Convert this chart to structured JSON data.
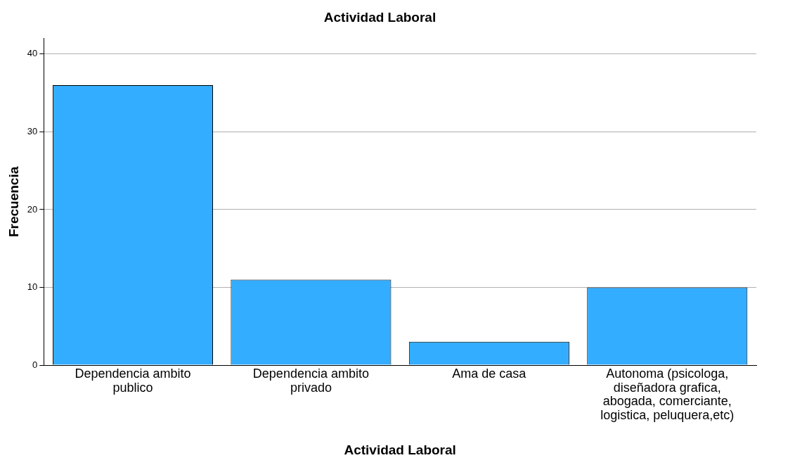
{
  "chart_data": {
    "type": "bar",
    "title": "Actividad Laboral",
    "xlabel": "Actividad Laboral",
    "ylabel": "Frecuencia",
    "categories": [
      "Dependencia ambito publico",
      "Dependencia ambito privado",
      "Ama de casa",
      "Autonoma (psicologa, diseñadora grafica, abogada, comerciante, logistica, peluquera,etc)"
    ],
    "values": [
      36,
      11,
      3,
      10
    ],
    "color": "#33adff",
    "ylim": [
      0,
      42
    ],
    "yticks": [
      0,
      10,
      20,
      30,
      40
    ],
    "grid": "y",
    "legend": false
  }
}
